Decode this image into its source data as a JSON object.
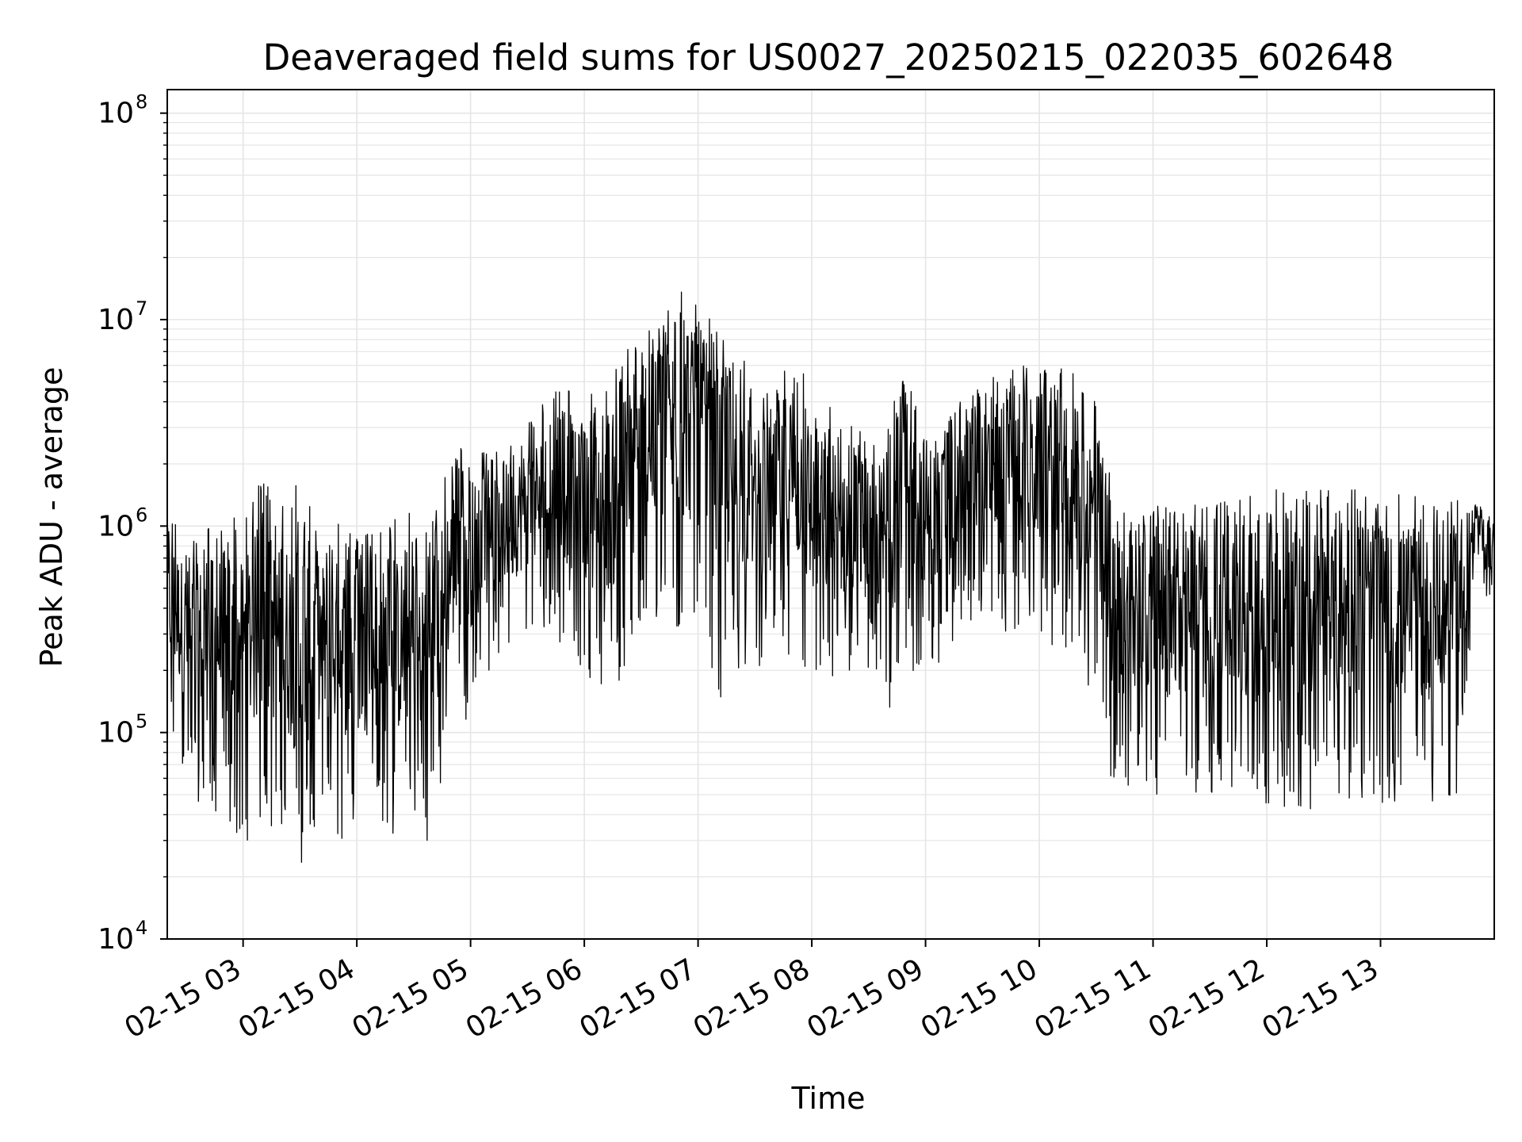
{
  "chart_data": {
    "type": "line",
    "title": "Deaveraged field sums for US0027_20250215_022035_602648",
    "xlabel": "Time",
    "ylabel": "Peak ADU - average",
    "yscale": "log",
    "ylim": [
      10000,
      130000000
    ],
    "xlim": [
      "2025-02-15 02:20",
      "2025-02-15 14:00"
    ],
    "grid": true,
    "line_color": "#000000",
    "grid_color": "#e5e5e5",
    "y_ticks": [
      {
        "value": 10000,
        "base": "10",
        "exp": "4"
      },
      {
        "value": 100000,
        "base": "10",
        "exp": "5"
      },
      {
        "value": 1000000,
        "base": "10",
        "exp": "6"
      },
      {
        "value": 10000000,
        "base": "10",
        "exp": "7"
      },
      {
        "value": 100000000,
        "base": "10",
        "exp": "8"
      }
    ],
    "x_ticks": [
      {
        "time": "2025-02-15 03:00",
        "label": "02-15 03"
      },
      {
        "time": "2025-02-15 04:00",
        "label": "02-15 04"
      },
      {
        "time": "2025-02-15 05:00",
        "label": "02-15 05"
      },
      {
        "time": "2025-02-15 06:00",
        "label": "02-15 06"
      },
      {
        "time": "2025-02-15 07:00",
        "label": "02-15 07"
      },
      {
        "time": "2025-02-15 08:00",
        "label": "02-15 08"
      },
      {
        "time": "2025-02-15 09:00",
        "label": "02-15 09"
      },
      {
        "time": "2025-02-15 10:00",
        "label": "02-15 10"
      },
      {
        "time": "2025-02-15 11:00",
        "label": "02-15 11"
      },
      {
        "time": "2025-02-15 12:00",
        "label": "02-15 12"
      },
      {
        "time": "2025-02-15 13:00",
        "label": "02-15 13"
      }
    ],
    "series": [
      {
        "x": [
          "2025-02-15 02:20",
          "2025-02-15 02:30",
          "2025-02-15 02:40",
          "2025-02-15 02:50",
          "2025-02-15 03:00",
          "2025-02-15 03:10",
          "2025-02-15 03:20",
          "2025-02-15 03:30",
          "2025-02-15 03:40",
          "2025-02-15 03:50",
          "2025-02-15 04:00",
          "2025-02-15 04:10",
          "2025-02-15 04:20",
          "2025-02-15 04:30",
          "2025-02-15 04:40",
          "2025-02-15 04:50",
          "2025-02-15 05:00",
          "2025-02-15 05:10",
          "2025-02-15 05:20",
          "2025-02-15 05:30",
          "2025-02-15 05:40",
          "2025-02-15 05:50",
          "2025-02-15 06:00",
          "2025-02-15 06:10",
          "2025-02-15 06:20",
          "2025-02-15 06:30",
          "2025-02-15 06:40",
          "2025-02-15 06:50",
          "2025-02-15 07:00",
          "2025-02-15 07:10",
          "2025-02-15 07:20",
          "2025-02-15 07:30",
          "2025-02-15 07:40",
          "2025-02-15 07:50",
          "2025-02-15 08:00",
          "2025-02-15 08:10",
          "2025-02-15 08:20",
          "2025-02-15 08:30",
          "2025-02-15 08:40",
          "2025-02-15 08:50",
          "2025-02-15 09:00",
          "2025-02-15 09:10",
          "2025-02-15 09:20",
          "2025-02-15 09:30",
          "2025-02-15 09:40",
          "2025-02-15 09:50",
          "2025-02-15 10:00",
          "2025-02-15 10:10",
          "2025-02-15 10:20",
          "2025-02-15 10:30",
          "2025-02-15 10:40",
          "2025-02-15 10:50",
          "2025-02-15 11:00",
          "2025-02-15 11:10",
          "2025-02-15 11:20",
          "2025-02-15 11:30",
          "2025-02-15 11:40",
          "2025-02-15 11:50",
          "2025-02-15 12:00",
          "2025-02-15 12:10",
          "2025-02-15 12:20",
          "2025-02-15 12:30",
          "2025-02-15 12:40",
          "2025-02-15 12:50",
          "2025-02-15 13:00",
          "2025-02-15 13:10",
          "2025-02-15 13:20",
          "2025-02-15 13:30",
          "2025-02-15 13:40",
          "2025-02-15 13:50",
          "2025-02-15 14:00"
        ],
        "low": [
          90000,
          60000,
          40000,
          35000,
          30000,
          30000,
          35000,
          15000,
          40000,
          30000,
          30000,
          35000,
          30000,
          30000,
          30000,
          90000,
          120000,
          200000,
          250000,
          280000,
          300000,
          250000,
          200000,
          150000,
          150000,
          250000,
          300000,
          300000,
          300000,
          120000,
          200000,
          200000,
          180000,
          200000,
          150000,
          150000,
          150000,
          180000,
          120000,
          180000,
          200000,
          200000,
          300000,
          350000,
          300000,
          300000,
          300000,
          250000,
          200000,
          100000,
          50000,
          50000,
          50000,
          50000,
          50000,
          50000,
          50000,
          45000,
          45000,
          40000,
          40000,
          45000,
          45000,
          45000,
          45000,
          45000,
          45000,
          45000,
          50000,
          400000,
          450000
        ],
        "high": [
          1400000,
          900000,
          1000000,
          1200000,
          1100000,
          1800000,
          1200000,
          1900000,
          1000000,
          1100000,
          1000000,
          900000,
          1100000,
          1200000,
          1100000,
          2400000,
          2500000,
          2200000,
          2500000,
          3500000,
          4000000,
          5000000,
          4000000,
          5000000,
          7000000,
          9000000,
          10000000,
          15000000,
          12000000,
          9000000,
          9000000,
          4000000,
          5000000,
          9000000,
          4000000,
          4000000,
          3500000,
          3000000,
          3000000,
          7500000,
          4000000,
          3000000,
          4500000,
          5000000,
          6000000,
          6000000,
          6500000,
          6000000,
          5500000,
          4500000,
          1300000,
          1200000,
          1250000,
          1250000,
          1300000,
          1350000,
          1400000,
          1450000,
          1500000,
          1500000,
          1550000,
          1550000,
          1500000,
          1500000,
          1450000,
          1450000,
          1400000,
          1400000,
          1400000,
          1300000,
          1200000
        ]
      }
    ]
  }
}
